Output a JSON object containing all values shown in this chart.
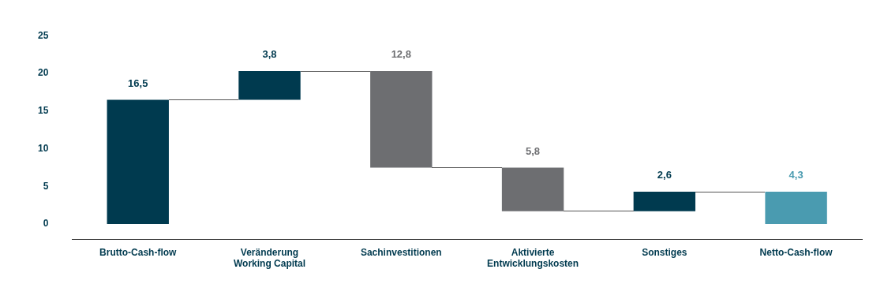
{
  "chart_data": {
    "type": "bar",
    "categories": [
      "Brutto-Cash-flow",
      "Veränderung Working Capital",
      "Sachinvestitionen",
      "Aktivierte Entwicklungskosten",
      "Sonstiges",
      "Netto-Cash-flow"
    ],
    "base": [
      0,
      16.5,
      20.3,
      7.5,
      1.7,
      0
    ],
    "values": [
      16.5,
      3.8,
      -12.8,
      -5.8,
      2.6,
      4.3
    ],
    "colors": [
      "#003a4f",
      "#003a4f",
      "#6d6e71",
      "#6d6e71",
      "#003a4f",
      "#4a9bb0"
    ],
    "value_labels": [
      "16,5",
      "3,8",
      "12,8",
      "5,8",
      "2,6",
      "4,3"
    ],
    "ylim": [
      -2,
      25
    ],
    "yticks": [
      0,
      5,
      10,
      15,
      20,
      25
    ],
    "grid": false,
    "legend": false
  }
}
